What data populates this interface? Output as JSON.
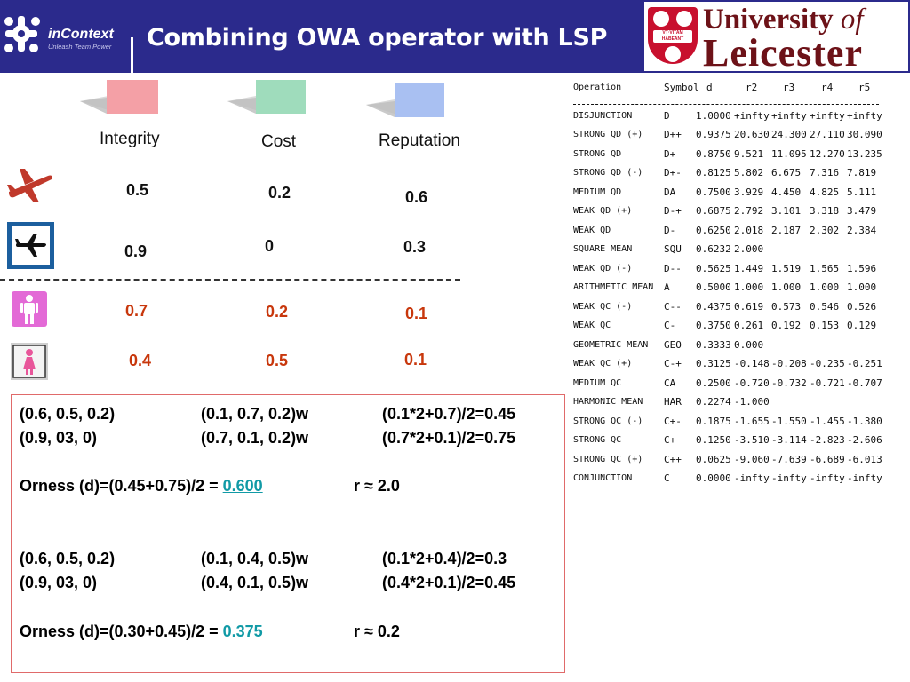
{
  "header": {
    "logo_text": "inContext",
    "logo_tagline": "Unleash Team Power",
    "title": "Combining OWA operator with LSP",
    "university_line1": "University",
    "university_of": "of",
    "university_line2": "Leicester",
    "crest_motto": "VT·VITAM HABEANT"
  },
  "criteria": [
    {
      "label": "Integrity",
      "color": "#f4a0a6"
    },
    {
      "label": "Cost",
      "color": "#9fdcbc"
    },
    {
      "label": "Reputation",
      "color": "#a9c0f2"
    }
  ],
  "rows": [
    {
      "icon": "airplane-red-icon",
      "values": [
        "0.5",
        "0.2",
        "0.6"
      ]
    },
    {
      "icon": "airplane-sign-icon",
      "values": [
        "0.9",
        "0",
        "0.3"
      ]
    },
    {
      "icon": "man-sign-icon",
      "values": [
        "0.7",
        "0.2",
        "0.1"
      ]
    },
    {
      "icon": "woman-sign-icon",
      "values": [
        "0.4",
        "0.5",
        "0.1"
      ]
    }
  ],
  "colors": {
    "header_bg": "#2b2a8c",
    "value_red": "#c8370c",
    "highlight": "#119aa6",
    "box_border": "#e06a6a"
  },
  "box": {
    "l1": [
      "(0.6, 0.5, 0.2)",
      "(0.1, 0.7, 0.2)w",
      "(0.1*2+0.7)/2=0.45"
    ],
    "l2": [
      "(0.9, 03, 0)",
      "(0.7, 0.1, 0.2)w",
      "(0.7*2+0.1)/2=0.75"
    ],
    "o1": {
      "prefix": "Orness (d)=(0.45+0.75)/2 = ",
      "value": "0.600",
      "r": "r ≈ 2.0"
    },
    "l3": [
      "(0.6, 0.5, 0.2)",
      "(0.1, 0.4, 0.5)w",
      "(0.1*2+0.4)/2=0.3"
    ],
    "l4": [
      "(0.9, 03, 0)",
      "(0.4, 0.1, 0.5)w",
      "(0.4*2+0.1)/2=0.45"
    ],
    "o2": {
      "prefix": "Orness (d)=(0.30+0.45)/2 = ",
      "value": "0.375",
      "r": "r ≈ 0.2"
    }
  },
  "table": {
    "headers": [
      "Operation",
      "Symbol",
      "d",
      "r2",
      "r3",
      "r4",
      "r5"
    ],
    "rows": [
      [
        "DISJUNCTION",
        "D",
        "1.0000",
        "+infty",
        "+infty",
        "+infty",
        "+infty"
      ],
      [
        "STRONG QD (+)",
        "D++",
        "0.9375",
        "20.630",
        "24.300",
        "27.110",
        "30.090"
      ],
      [
        "STRONG QD",
        "D+",
        "0.8750",
        "9.521",
        "11.095",
        "12.270",
        "13.235"
      ],
      [
        "STRONG QD (-)",
        "D+-",
        "0.8125",
        "5.802",
        "6.675",
        "7.316",
        "7.819"
      ],
      [
        "MEDIUM QD",
        "DA",
        "0.7500",
        "3.929",
        "4.450",
        "4.825",
        "5.111"
      ],
      [
        "WEAK QD (+)",
        "D-+",
        "0.6875",
        "2.792",
        "3.101",
        "3.318",
        "3.479"
      ],
      [
        "WEAK QD",
        "D-",
        "0.6250",
        "2.018",
        "2.187",
        "2.302",
        "2.384"
      ],
      [
        "SQUARE MEAN",
        "SQU",
        "0.6232",
        "2.000",
        "",
        "",
        ""
      ],
      [
        "WEAK QD (-)",
        "D--",
        "0.5625",
        "1.449",
        "1.519",
        "1.565",
        "1.596"
      ],
      [
        "ARITHMETIC MEAN",
        "A",
        "0.5000",
        "1.000",
        "1.000",
        "1.000",
        "1.000"
      ],
      [
        "WEAK QC (-)",
        "C--",
        "0.4375",
        "0.619",
        "0.573",
        "0.546",
        "0.526"
      ],
      [
        "WEAK QC",
        "C-",
        "0.3750",
        "0.261",
        "0.192",
        "0.153",
        "0.129"
      ],
      [
        "GEOMETRIC MEAN",
        "GEO",
        "0.3333",
        "0.000",
        "",
        "",
        ""
      ],
      [
        "WEAK QC (+)",
        "C-+",
        "0.3125",
        "-0.148",
        "-0.208",
        "-0.235",
        "-0.251"
      ],
      [
        "MEDIUM QC",
        "CA",
        "0.2500",
        "-0.720",
        "-0.732",
        "-0.721",
        "-0.707"
      ],
      [
        "HARMONIC MEAN",
        "HAR",
        "0.2274",
        "-1.000",
        "",
        "",
        ""
      ],
      [
        "STRONG QC (-)",
        "C+-",
        "0.1875",
        "-1.655",
        "-1.550",
        "-1.455",
        "-1.380"
      ],
      [
        "STRONG QC",
        "C+",
        "0.1250",
        "-3.510",
        "-3.114",
        "-2.823",
        "-2.606"
      ],
      [
        "STRONG QC (+)",
        "C++",
        "0.0625",
        "-9.060",
        "-7.639",
        "-6.689",
        "-6.013"
      ],
      [
        "CONJUNCTION",
        "C",
        "0.0000",
        "-infty",
        "-infty",
        "-infty",
        "-infty"
      ]
    ]
  }
}
